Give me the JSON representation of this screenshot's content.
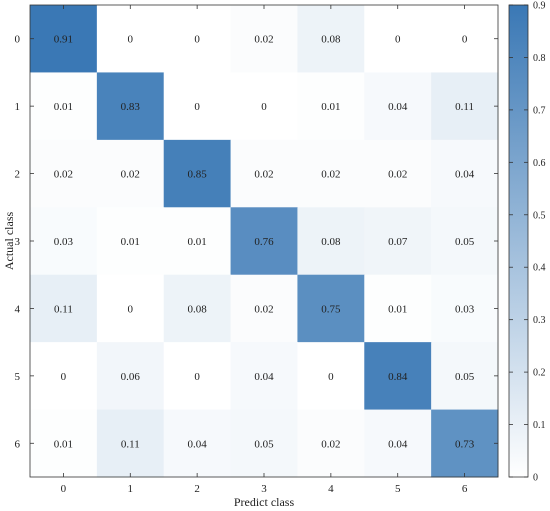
{
  "chart_data": {
    "type": "heatmap",
    "title": "",
    "xlabel": "Predict class",
    "ylabel": "Actual class",
    "x_categories": [
      "0",
      "1",
      "2",
      "3",
      "4",
      "5",
      "6"
    ],
    "y_categories": [
      "0",
      "1",
      "2",
      "3",
      "4",
      "5",
      "6"
    ],
    "values": [
      [
        0.91,
        0,
        0,
        0.02,
        0.08,
        0,
        0
      ],
      [
        0.01,
        0.83,
        0,
        0,
        0.01,
        0.04,
        0.11
      ],
      [
        0.02,
        0.02,
        0.85,
        0.02,
        0.02,
        0.02,
        0.04
      ],
      [
        0.03,
        0.01,
        0.01,
        0.76,
        0.08,
        0.07,
        0.05
      ],
      [
        0.11,
        0,
        0.08,
        0.02,
        0.75,
        0.01,
        0.03
      ],
      [
        0,
        0.06,
        0,
        0.04,
        0,
        0.84,
        0.05
      ],
      [
        0.01,
        0.11,
        0.04,
        0.05,
        0.02,
        0.04,
        0.73
      ]
    ],
    "colorbar": {
      "min": 0,
      "max": 0.9,
      "ticks": [
        0,
        0.1,
        0.2,
        0.3,
        0.4,
        0.5,
        0.6,
        0.7,
        0.8,
        0.9
      ],
      "tick_labels": [
        "0",
        "0.1",
        "0.2",
        "0.3",
        "0.4",
        "0.5",
        "0.6",
        "0.7",
        "0.8",
        "0.9"
      ],
      "color_low": "#ffffff",
      "color_high": "#3a78b5"
    },
    "grid": false
  }
}
